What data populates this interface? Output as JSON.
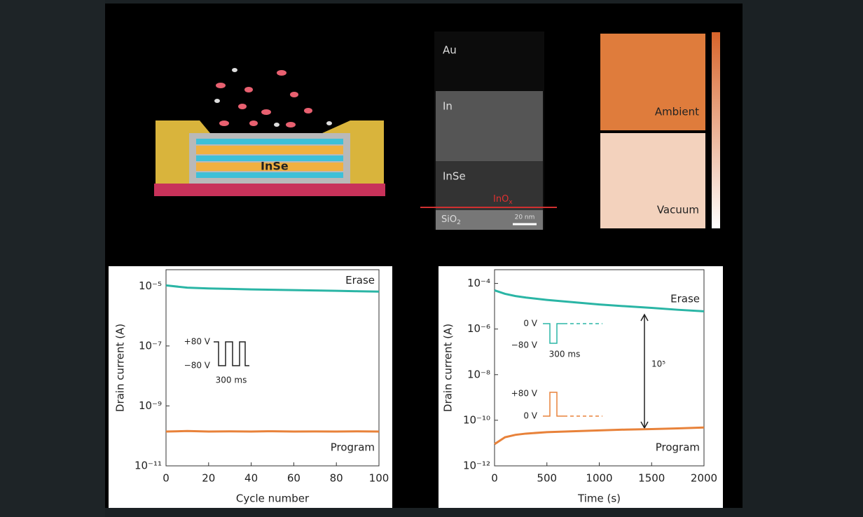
{
  "panels": {
    "schematic": {
      "label": "InSe"
    },
    "tem": {
      "labels": [
        "Au",
        "In",
        "InSe"
      ],
      "oxide": {
        "base": "InO",
        "sub": "x"
      },
      "substrate": {
        "base": "SiO",
        "sub": "2"
      },
      "scale": "20 nm"
    },
    "maps": {
      "top": "Ambient",
      "bottom": "Vacuum"
    }
  },
  "chart_data": [
    {
      "type": "line",
      "x_label": "Cycle number",
      "y_label": "Drain current (A)",
      "log_y": true,
      "xlim": [
        0,
        100
      ],
      "xticks": [
        0,
        20,
        40,
        60,
        80,
        100
      ],
      "ylim": [
        1e-11,
        3.5e-05
      ],
      "yticks": [
        {
          "value": 1e-05,
          "label": "10⁻⁵"
        },
        {
          "value": 1e-07,
          "label": "10⁻⁷"
        },
        {
          "value": 1e-09,
          "label": "10⁻⁹"
        },
        {
          "value": 1e-11,
          "label": "10⁻¹¹"
        }
      ],
      "x": [
        0,
        10,
        20,
        30,
        40,
        50,
        60,
        70,
        80,
        90,
        100
      ],
      "series": [
        {
          "name": "Erase",
          "color": "#2ab5a5",
          "values": [
            1.05e-05,
            8.8e-06,
            8.3e-06,
            8e-06,
            7.7e-06,
            7.5e-06,
            7.3e-06,
            7.1e-06,
            6.9e-06,
            6.7e-06,
            6.5e-06
          ]
        },
        {
          "name": "Program",
          "color": "#e8823a",
          "values": [
            1.4e-10,
            1.45e-10,
            1.4e-10,
            1.42e-10,
            1.4e-10,
            1.43e-10,
            1.4e-10,
            1.41e-10,
            1.4e-10,
            1.42e-10,
            1.4e-10
          ]
        }
      ],
      "annotations": [
        "+80 V",
        "−80 V",
        "300 ms"
      ]
    },
    {
      "type": "line",
      "x_label": "Time (s)",
      "y_label": "Drain current (A)",
      "log_y": true,
      "xlim": [
        0,
        2000
      ],
      "xticks": [
        0,
        500,
        1000,
        1500,
        2000
      ],
      "ylim": [
        1e-12,
        0.0004
      ],
      "yticks": [
        {
          "value": 0.0001,
          "label": "10⁻⁴"
        },
        {
          "value": 1e-06,
          "label": "10⁻⁶"
        },
        {
          "value": 1e-08,
          "label": "10⁻⁸"
        },
        {
          "value": 1e-10,
          "label": "10⁻¹⁰"
        },
        {
          "value": 1e-12,
          "label": "10⁻¹²"
        }
      ],
      "x": [
        0,
        100,
        200,
        300,
        500,
        750,
        1000,
        1250,
        1500,
        1750,
        2000
      ],
      "series": [
        {
          "name": "Erase",
          "color": "#2ab5a5",
          "values": [
            5e-05,
            3.5e-05,
            2.8e-05,
            2.4e-05,
            1.9e-05,
            1.5e-05,
            1.2e-05,
            1e-05,
            8.5e-06,
            7e-06,
            6e-06
          ]
        },
        {
          "name": "Program",
          "color": "#e8823a",
          "values": [
            9e-12,
            1.8e-11,
            2.3e-11,
            2.6e-11,
            3e-11,
            3.3e-11,
            3.6e-11,
            3.9e-11,
            4.1e-11,
            4.4e-11,
            4.8e-11
          ]
        }
      ],
      "annotations": [
        "0 V",
        "−80 V",
        "300 ms",
        "+80 V",
        "0 V",
        "10⁵"
      ]
    }
  ]
}
